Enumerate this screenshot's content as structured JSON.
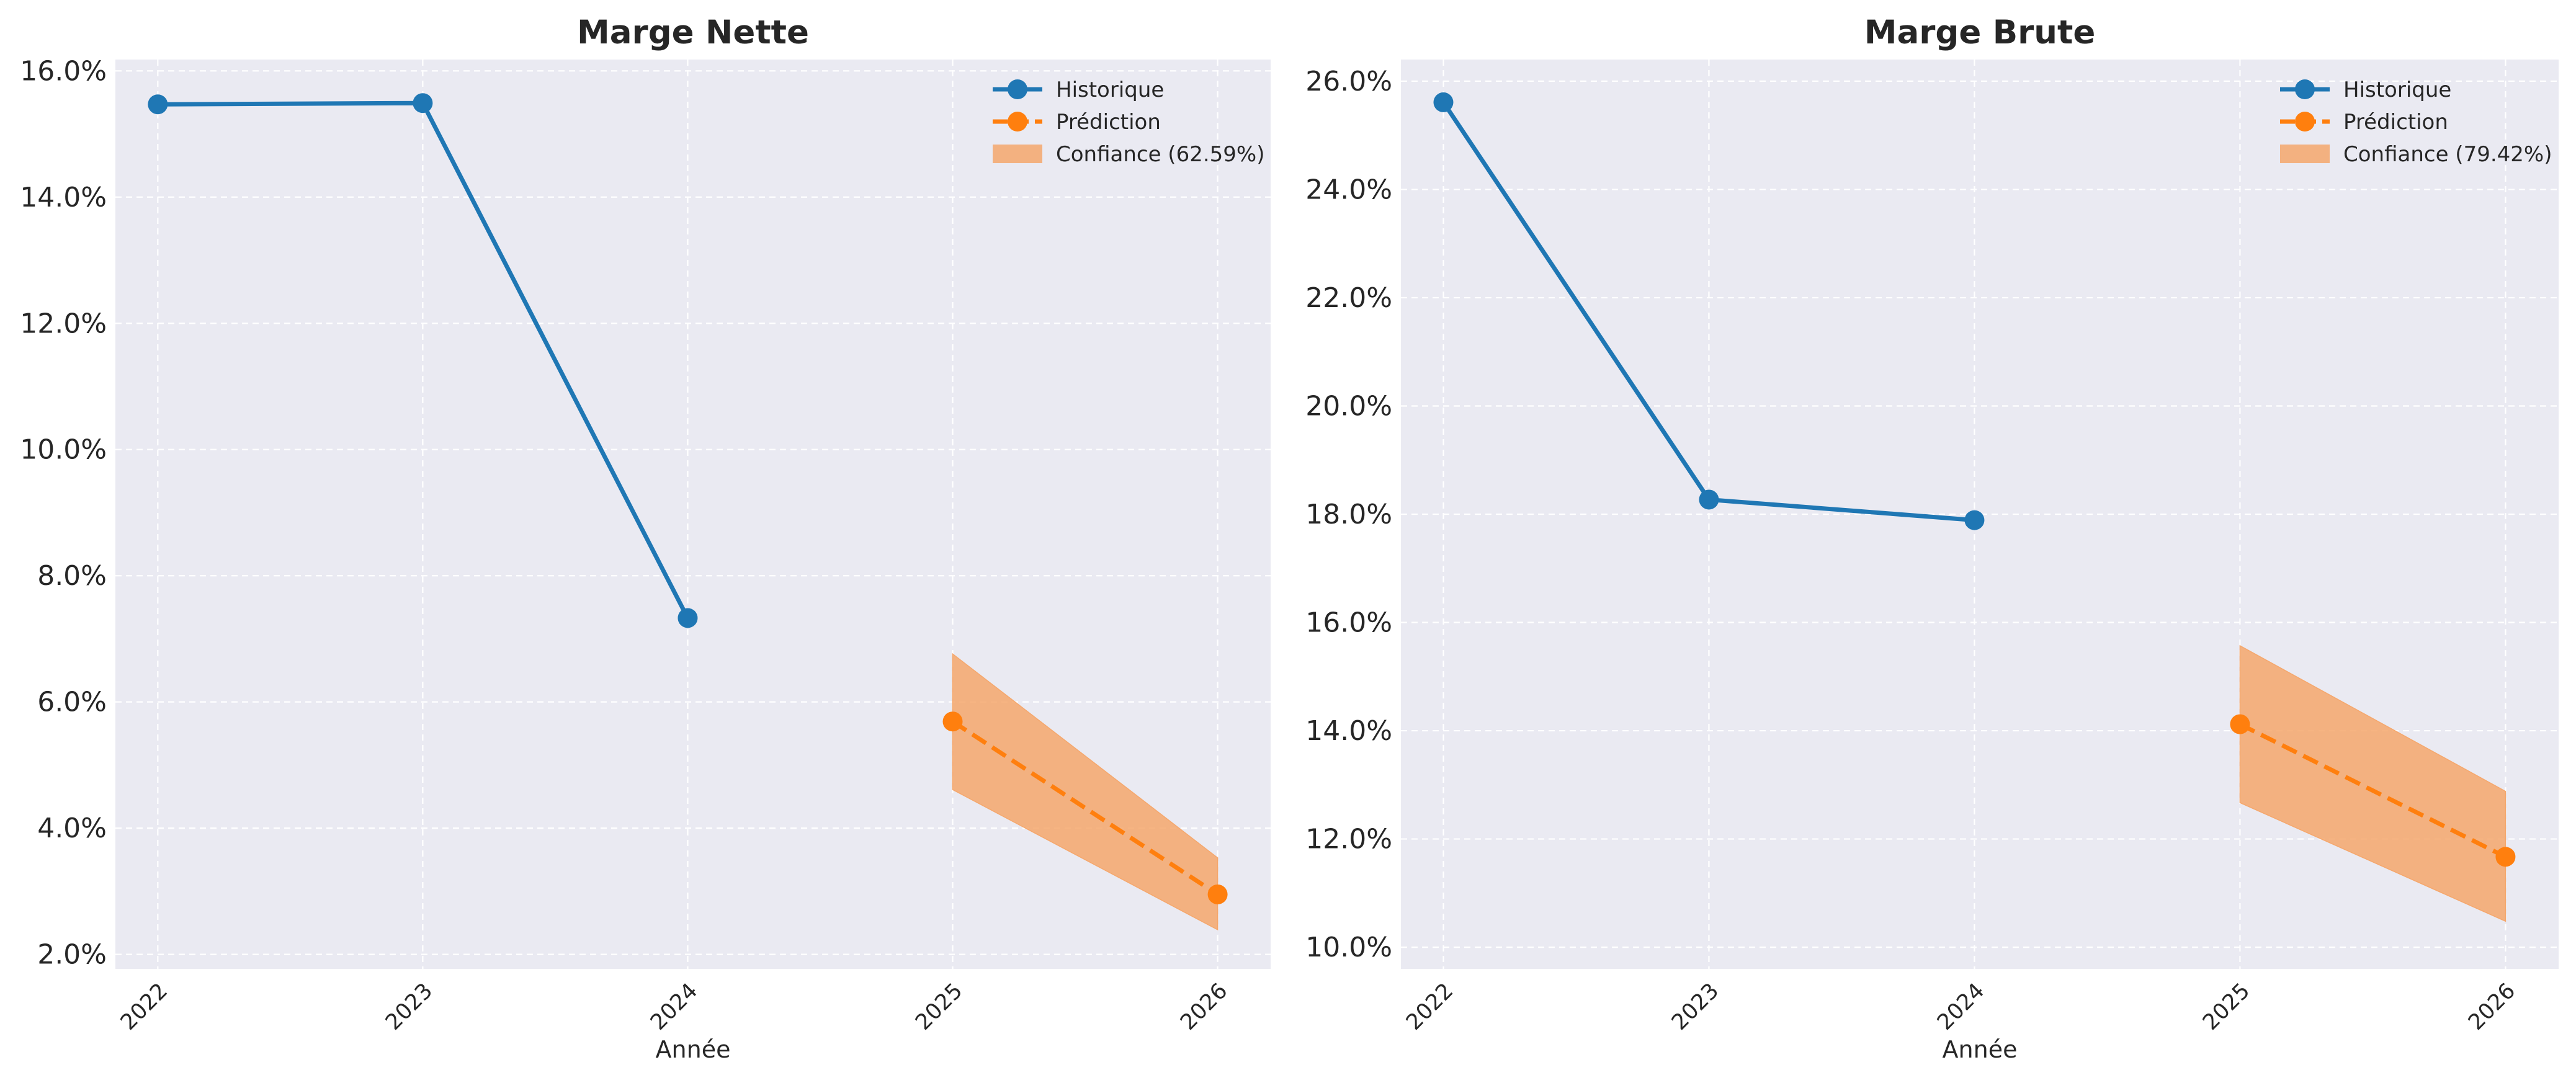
{
  "chart_data": [
    {
      "type": "line",
      "title": "Marge Nette",
      "xlabel": "Année",
      "ylabel": "",
      "x_ticks": [
        "2022",
        "2023",
        "2024",
        "2025",
        "2026"
      ],
      "xlim": [
        2021.84,
        2026.2
      ],
      "ylim": [
        1.77,
        16.18
      ],
      "y_ticks": [
        2,
        4,
        6,
        8,
        10,
        12,
        14,
        16
      ],
      "y_tick_labels": [
        "2.0%",
        "4.0%",
        "6.0%",
        "8.0%",
        "10.0%",
        "12.0%",
        "14.0%",
        "16.0%"
      ],
      "grid": true,
      "legend_position": "top-right",
      "series": [
        {
          "name": "Historique",
          "style": "solid",
          "marker": "circle",
          "color": "#1f77b4",
          "x": [
            2022,
            2023,
            2024
          ],
          "y": [
            15.47,
            15.49,
            7.33
          ]
        },
        {
          "name": "Prédiction",
          "style": "dashed",
          "marker": "circle",
          "color": "#ff7f0e",
          "x": [
            2025,
            2026
          ],
          "y": [
            5.69,
            2.95
          ]
        }
      ],
      "confidence_band": {
        "name": "Confiance (62.59%)",
        "color": "#ff7f0e",
        "x": [
          2025,
          2026
        ],
        "lower": [
          4.61,
          2.39
        ],
        "upper": [
          6.76,
          3.53
        ]
      }
    },
    {
      "type": "line",
      "title": "Marge Brute",
      "xlabel": "Année",
      "ylabel": "",
      "x_ticks": [
        "2022",
        "2023",
        "2024",
        "2025",
        "2026"
      ],
      "xlim": [
        2021.84,
        2026.2
      ],
      "ylim": [
        9.6,
        26.4
      ],
      "y_ticks": [
        10,
        12,
        14,
        16,
        18,
        20,
        22,
        24,
        26
      ],
      "y_tick_labels": [
        "10.0%",
        "12.0%",
        "14.0%",
        "16.0%",
        "18.0%",
        "20.0%",
        "22.0%",
        "24.0%",
        "26.0%"
      ],
      "grid": true,
      "legend_position": "top-right",
      "series": [
        {
          "name": "Historique",
          "style": "solid",
          "marker": "circle",
          "color": "#1f77b4",
          "x": [
            2022,
            2023,
            2024
          ],
          "y": [
            25.61,
            18.27,
            17.89
          ]
        },
        {
          "name": "Prédiction",
          "style": "dashed",
          "marker": "circle",
          "color": "#ff7f0e",
          "x": [
            2025,
            2026
          ],
          "y": [
            14.12,
            11.67
          ]
        }
      ],
      "confidence_band": {
        "name": "Confiance (79.42%)",
        "color": "#ff7f0e",
        "x": [
          2025,
          2026
        ],
        "lower": [
          12.67,
          10.48
        ],
        "upper": [
          15.57,
          12.88
        ]
      }
    }
  ],
  "colors": {
    "plot_background": "#eaeaf2",
    "grid": "#ffffff",
    "historique": "#1f77b4",
    "prediction": "#ff7f0e",
    "confidence_fill": "#f5a76c"
  }
}
